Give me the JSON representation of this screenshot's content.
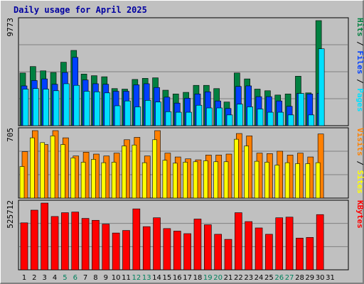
{
  "title": "Daily usage for April 2025",
  "colors": {
    "hits": "#008040",
    "files": "#0040ff",
    "pages": "#00e0ff",
    "visits": "#ff8000",
    "sites": "#ffff00",
    "kbytes": "#ff0000",
    "weekend": "#00805c",
    "weekday": "#000000",
    "panel": "#c0c0c0",
    "grid": "#808080"
  },
  "chart_data": [
    {
      "type": "bar",
      "legend": [
        "Pages",
        "Files",
        "Hits"
      ],
      "y_max_label": "9773",
      "y_max": 9773,
      "grid": true,
      "categories": [
        "1",
        "2",
        "3",
        "4",
        "5",
        "6",
        "7",
        "8",
        "9",
        "10",
        "11",
        "12",
        "13",
        "14",
        "15",
        "16",
        "17",
        "18",
        "19",
        "20",
        "21",
        "22",
        "23",
        "24",
        "25",
        "26",
        "27",
        "28",
        "29",
        "30",
        "31"
      ],
      "series": [
        {
          "name": "Hits",
          "values": [
            4900,
            5500,
            5100,
            4950,
            5900,
            7000,
            4800,
            4650,
            4550,
            3450,
            3400,
            4300,
            4400,
            4450,
            3300,
            2950,
            3100,
            3750,
            3750,
            3450,
            2200,
            4900,
            4350,
            3400,
            3250,
            2850,
            2950,
            4600,
            3050,
            9773,
            0
          ]
        },
        {
          "name": "Files",
          "values": [
            3700,
            4200,
            4350,
            3850,
            4950,
            6350,
            4250,
            3900,
            3850,
            3200,
            3200,
            3800,
            3900,
            3550,
            2650,
            2100,
            2550,
            2950,
            3150,
            2300,
            1600,
            3650,
            3700,
            2700,
            2700,
            2300,
            1800,
            3000,
            2950,
            3000,
            0
          ]
        },
        {
          "name": "Pages",
          "values": [
            3400,
            3450,
            3400,
            3250,
            3900,
            3750,
            3200,
            3150,
            3050,
            1850,
            2300,
            1750,
            2350,
            2200,
            1300,
            1250,
            1250,
            1900,
            1650,
            1650,
            1000,
            2000,
            1750,
            1550,
            1250,
            1250,
            1000,
            3000,
            1000,
            7150,
            0
          ]
        }
      ]
    },
    {
      "type": "bar",
      "legend": [
        "Sites",
        "Visits"
      ],
      "y_max_label": "705",
      "y_max": 705,
      "grid": true,
      "categories": [
        "1",
        "2",
        "3",
        "4",
        "5",
        "6",
        "7",
        "8",
        "9",
        "10",
        "11",
        "12",
        "13",
        "14",
        "15",
        "16",
        "17",
        "18",
        "19",
        "20",
        "21",
        "22",
        "23",
        "24",
        "25",
        "26",
        "27",
        "28",
        "29",
        "30",
        "31"
      ],
      "series": [
        {
          "name": "Visits",
          "values": [
            485,
            705,
            560,
            705,
            630,
            440,
            480,
            460,
            440,
            470,
            610,
            635,
            440,
            705,
            470,
            430,
            410,
            400,
            450,
            450,
            460,
            675,
            650,
            470,
            465,
            490,
            450,
            470,
            430,
            670,
            0
          ]
        },
        {
          "name": "Sites",
          "values": [
            330,
            630,
            580,
            650,
            560,
            420,
            375,
            405,
            370,
            375,
            545,
            555,
            370,
            610,
            395,
            365,
            375,
            380,
            390,
            380,
            380,
            615,
            545,
            385,
            375,
            345,
            370,
            360,
            360,
            370,
            0
          ]
        }
      ]
    },
    {
      "type": "bar",
      "legend": [
        "KBytes"
      ],
      "y_max_label": "525712",
      "y_max": 525712,
      "grid": true,
      "categories": [
        "1",
        "2",
        "3",
        "4",
        "5",
        "6",
        "7",
        "8",
        "9",
        "10",
        "11",
        "12",
        "13",
        "14",
        "15",
        "16",
        "17",
        "18",
        "19",
        "20",
        "21",
        "22",
        "23",
        "24",
        "25",
        "26",
        "27",
        "28",
        "29",
        "30",
        "31"
      ],
      "series": [
        {
          "name": "KBytes",
          "values": [
            370000,
            470000,
            525712,
            420000,
            450000,
            455000,
            405000,
            390000,
            360000,
            290000,
            310000,
            480000,
            340000,
            410000,
            325000,
            305000,
            285000,
            400000,
            355000,
            280000,
            240000,
            450000,
            380000,
            330000,
            280000,
            410000,
            415000,
            250000,
            255000,
            435000,
            0
          ]
        }
      ]
    }
  ]
}
